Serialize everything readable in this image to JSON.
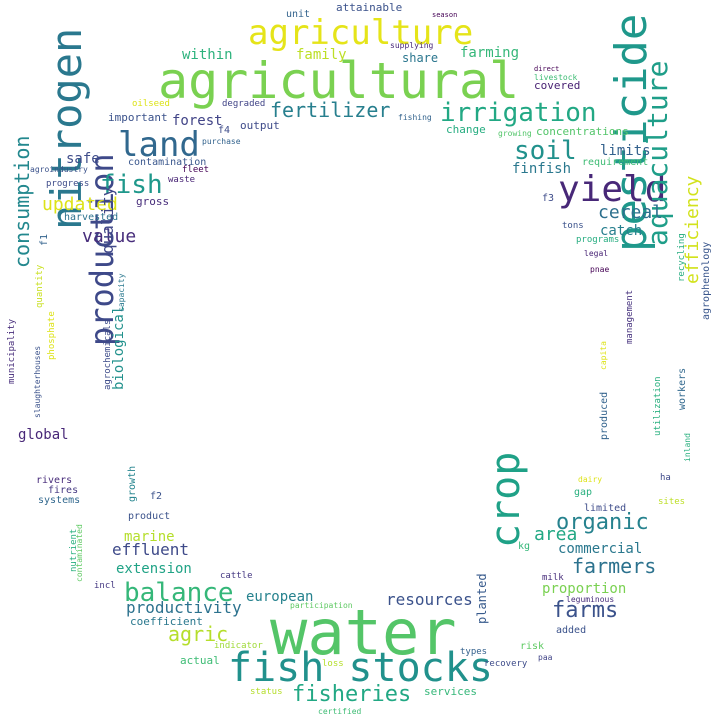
{
  "words": [
    {
      "text": "agricultural",
      "color": "#7ad151"
    },
    {
      "text": "water",
      "color": "#54c568"
    },
    {
      "text": "fish stocks",
      "color": "#21918c"
    },
    {
      "text": "agriculture",
      "color": "#e5e419"
    },
    {
      "text": "nitrogen",
      "color": "#2a788e"
    },
    {
      "text": "pesticide",
      "color": "#1f988b"
    },
    {
      "text": "production",
      "color": "#3e4989"
    },
    {
      "text": "crop",
      "color": "#1fa187"
    },
    {
      "text": "yield",
      "color": "#482878"
    },
    {
      "text": "land",
      "color": "#31688e"
    },
    {
      "text": "irrigation",
      "color": "#22a884"
    },
    {
      "text": "aquaculture",
      "color": "#1f9e89"
    },
    {
      "text": "fisheries",
      "color": "#22a884"
    },
    {
      "text": "fish",
      "color": "#1f988b"
    },
    {
      "text": "soil",
      "color": "#21918c"
    },
    {
      "text": "balance",
      "color": "#35b779"
    },
    {
      "text": "consumption",
      "color": "#23888e"
    },
    {
      "text": "fertilizer",
      "color": "#277f8e"
    },
    {
      "text": "organic",
      "color": "#26828e"
    },
    {
      "text": "efficiency",
      "color": "#d2e21b"
    },
    {
      "text": "farmers",
      "color": "#2c728e"
    },
    {
      "text": "farms",
      "color": "#3b528b"
    },
    {
      "text": "agric",
      "color": "#b5de2b"
    },
    {
      "text": "updated",
      "color": "#dde318"
    },
    {
      "text": "cereal",
      "color": "#2d708e"
    },
    {
      "text": "value",
      "color": "#472d7b"
    },
    {
      "text": "area",
      "color": "#22a884"
    },
    {
      "text": "productivity",
      "color": "#2c728e"
    },
    {
      "text": "quality",
      "color": "#3f4788"
    },
    {
      "text": "effluent",
      "color": "#3e4a89"
    },
    {
      "text": "resources",
      "color": "#3b528b"
    },
    {
      "text": "commercial",
      "color": "#2a788e"
    },
    {
      "text": "proportion",
      "color": "#7ad151"
    },
    {
      "text": "european",
      "color": "#26828e"
    },
    {
      "text": "family",
      "color": "#bddf26"
    },
    {
      "text": "within",
      "color": "#2db27d"
    },
    {
      "text": "farming",
      "color": "#35b779"
    },
    {
      "text": "finfish",
      "color": "#2a788e"
    },
    {
      "text": "forest",
      "color": "#414487"
    },
    {
      "text": "limits",
      "color": "#34618d"
    },
    {
      "text": "catch",
      "color": "#277f8e"
    },
    {
      "text": "global",
      "color": "#482878"
    },
    {
      "text": "extension",
      "color": "#20a386"
    },
    {
      "text": "marine",
      "color": "#b5de2b"
    },
    {
      "text": "safe",
      "color": "#3e4c8a"
    },
    {
      "text": "biological",
      "color": "#21918c"
    },
    {
      "text": "planted",
      "color": "#375a8c"
    },
    {
      "text": "share",
      "color": "#2a768e"
    },
    {
      "text": "attainable",
      "color": "#3b528b"
    },
    {
      "text": "covered",
      "color": "#482173"
    },
    {
      "text": "output",
      "color": "#3e4a89"
    },
    {
      "text": "important",
      "color": "#3b528b"
    },
    {
      "text": "contamination",
      "color": "#39568c"
    },
    {
      "text": "concentrations",
      "color": "#52c569"
    },
    {
      "text": "change",
      "color": "#27ad81"
    },
    {
      "text": "requirement",
      "color": "#3ebc74"
    },
    {
      "text": "coefficient",
      "color": "#2a788e"
    },
    {
      "text": "actual",
      "color": "#3dbc74"
    },
    {
      "text": "services",
      "color": "#35b779"
    },
    {
      "text": "agrophenology",
      "color": "#39568c"
    },
    {
      "text": "workers",
      "color": "#31688e"
    },
    {
      "text": "management",
      "color": "#46327e"
    },
    {
      "text": "utilization",
      "color": "#2ab07f"
    },
    {
      "text": "produced",
      "color": "#33638d"
    },
    {
      "text": "gross",
      "color": "#472d7b"
    },
    {
      "text": "harvested",
      "color": "#2c728e"
    },
    {
      "text": "progress",
      "color": "#3e4c8a"
    },
    {
      "text": "waste",
      "color": "#482475"
    },
    {
      "text": "fleet",
      "color": "#440154"
    },
    {
      "text": "growth",
      "color": "#25848e"
    },
    {
      "text": "product",
      "color": "#3b528b"
    },
    {
      "text": "rivers",
      "color": "#472c7a"
    },
    {
      "text": "fires",
      "color": "#453882"
    },
    {
      "text": "systems",
      "color": "#31688e"
    },
    {
      "text": "gap",
      "color": "#2ab07f"
    },
    {
      "text": "limited",
      "color": "#3e4c8a"
    },
    {
      "text": "tons",
      "color": "#3b528b"
    },
    {
      "text": "programs",
      "color": "#27ad81"
    },
    {
      "text": "legal",
      "color": "#482475"
    },
    {
      "text": "pnae",
      "color": "#440154"
    },
    {
      "text": "kg",
      "color": "#35b779"
    },
    {
      "text": "milk",
      "color": "#472d7b"
    },
    {
      "text": "risk",
      "color": "#5ec962"
    },
    {
      "text": "added",
      "color": "#3b528b"
    },
    {
      "text": "types",
      "color": "#34618d"
    },
    {
      "text": "recovery",
      "color": "#3e4c8a"
    },
    {
      "text": "leguminous",
      "color": "#472d7b"
    },
    {
      "text": "paa",
      "color": "#414487"
    },
    {
      "text": "cattle",
      "color": "#453882"
    },
    {
      "text": "incl",
      "color": "#453882"
    },
    {
      "text": "participation",
      "color": "#5ec962"
    },
    {
      "text": "indicator",
      "color": "#a0da39"
    },
    {
      "text": "loss",
      "color": "#b5de2b"
    },
    {
      "text": "status",
      "color": "#b5de2b"
    },
    {
      "text": "certified",
      "color": "#3ebc74"
    },
    {
      "text": "dairy",
      "color": "#dde318"
    },
    {
      "text": "sites",
      "color": "#bddf26"
    },
    {
      "text": "ha",
      "color": "#3e4989"
    },
    {
      "text": "inland",
      "color": "#2ab07f"
    },
    {
      "text": "capita",
      "color": "#dde318"
    },
    {
      "text": "recycling",
      "color": "#27ad81"
    },
    {
      "text": "f1",
      "color": "#33638d"
    },
    {
      "text": "f2",
      "color": "#3b528b"
    },
    {
      "text": "f3",
      "color": "#3e4c8a"
    },
    {
      "text": "f4",
      "color": "#3e4c8a"
    },
    {
      "text": "unit",
      "color": "#33638d"
    },
    {
      "text": "season",
      "color": "#440154"
    },
    {
      "text": "supplying",
      "color": "#482878"
    },
    {
      "text": "direct",
      "color": "#440154"
    },
    {
      "text": "livestock",
      "color": "#3ebc74"
    },
    {
      "text": "oilseed",
      "color": "#dde318"
    },
    {
      "text": "degraded",
      "color": "#414487"
    },
    {
      "text": "fishing",
      "color": "#33638d"
    },
    {
      "text": "growing",
      "color": "#52c569"
    },
    {
      "text": "purchase",
      "color": "#33638d"
    },
    {
      "text": "agroindustry",
      "color": "#3b528b"
    },
    {
      "text": "capacity",
      "color": "#2a788e"
    },
    {
      "text": "quantity",
      "color": "#c8e020"
    },
    {
      "text": "phosphate",
      "color": "#dde318"
    },
    {
      "text": "agrochemicals",
      "color": "#3e4c8a"
    },
    {
      "text": "municipality",
      "color": "#472d7b"
    },
    {
      "text": "slaughterhouses",
      "color": "#3b528b"
    },
    {
      "text": "nutrient",
      "color": "#2ab07f"
    },
    {
      "text": "contaminated",
      "color": "#5ec962"
    }
  ]
}
